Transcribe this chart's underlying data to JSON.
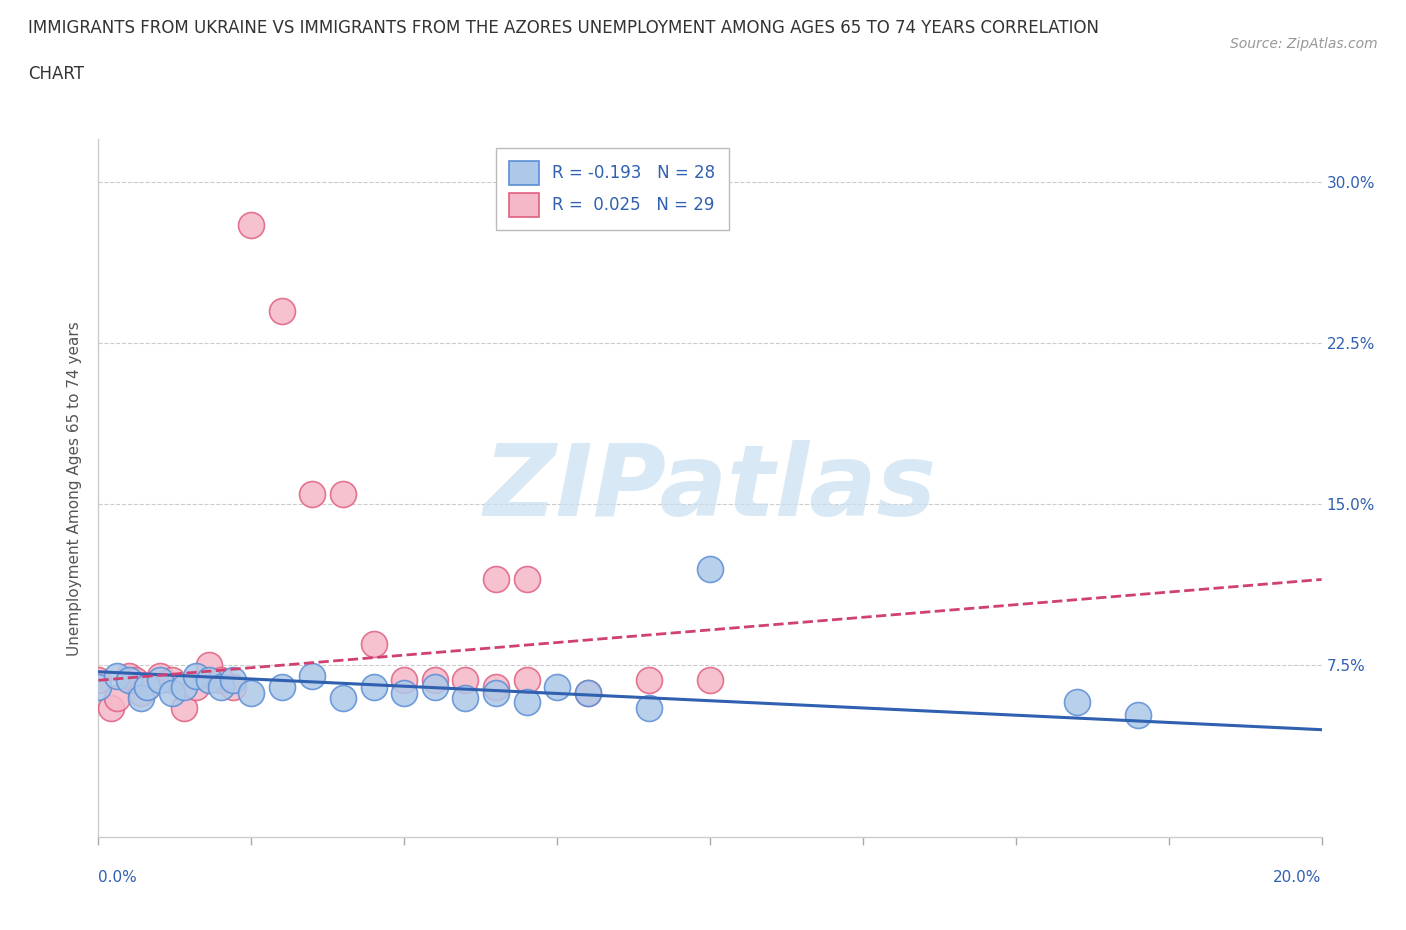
{
  "title_line1": "IMMIGRANTS FROM UKRAINE VS IMMIGRANTS FROM THE AZORES UNEMPLOYMENT AMONG AGES 65 TO 74 YEARS CORRELATION",
  "title_line2": "CHART",
  "source": "Source: ZipAtlas.com",
  "ylabel": "Unemployment Among Ages 65 to 74 years",
  "xlim": [
    0.0,
    0.2
  ],
  "ylim": [
    -0.005,
    0.32
  ],
  "ukraine_R": -0.193,
  "ukraine_N": 28,
  "azores_R": 0.025,
  "azores_N": 29,
  "ukraine_color": "#adc8e8",
  "azores_color": "#f5b8c8",
  "ukraine_edge_color": "#5b8ed6",
  "azores_edge_color": "#e06080",
  "ukraine_line_color": "#3060b0",
  "azores_line_color": "#d04070",
  "watermark_color": "#c8dff0",
  "grid_color": "#cccccc",
  "background_color": "#ffffff",
  "title_fontsize": 12,
  "axis_label_fontsize": 11,
  "tick_fontsize": 11,
  "legend_fontsize": 12,
  "source_fontsize": 10,
  "ukraine_points_x": [
    0.0,
    0.003,
    0.005,
    0.007,
    0.008,
    0.01,
    0.012,
    0.014,
    0.016,
    0.018,
    0.02,
    0.022,
    0.025,
    0.03,
    0.035,
    0.04,
    0.045,
    0.05,
    0.055,
    0.06,
    0.065,
    0.07,
    0.075,
    0.08,
    0.09,
    0.1,
    0.16,
    0.17
  ],
  "ukraine_points_y": [
    0.065,
    0.07,
    0.068,
    0.06,
    0.065,
    0.068,
    0.062,
    0.065,
    0.07,
    0.068,
    0.065,
    0.068,
    0.062,
    0.065,
    0.07,
    0.06,
    0.065,
    0.062,
    0.065,
    0.06,
    0.062,
    0.058,
    0.065,
    0.062,
    0.055,
    0.12,
    0.058,
    0.052
  ],
  "azores_points_x": [
    0.0,
    0.002,
    0.003,
    0.005,
    0.006,
    0.007,
    0.008,
    0.01,
    0.012,
    0.014,
    0.016,
    0.018,
    0.02,
    0.022,
    0.025,
    0.03,
    0.035,
    0.04,
    0.045,
    0.05,
    0.055,
    0.06,
    0.065,
    0.07,
    0.08,
    0.09,
    0.1,
    0.065,
    0.07
  ],
  "azores_points_y": [
    0.068,
    0.055,
    0.06,
    0.07,
    0.068,
    0.062,
    0.065,
    0.07,
    0.068,
    0.055,
    0.065,
    0.075,
    0.068,
    0.065,
    0.28,
    0.24,
    0.155,
    0.155,
    0.085,
    0.068,
    0.068,
    0.068,
    0.065,
    0.068,
    0.062,
    0.068,
    0.068,
    0.115,
    0.115
  ],
  "ukraine_trend_x": [
    0.0,
    0.2
  ],
  "ukraine_trend_y": [
    0.072,
    0.045
  ],
  "azores_trend_x": [
    0.0,
    0.2
  ],
  "azores_trend_y": [
    0.068,
    0.115
  ],
  "ytick_vals": [
    0.075,
    0.15,
    0.225,
    0.3
  ],
  "ytick_labels": [
    "7.5%",
    "15.0%",
    "22.5%",
    "30.0%"
  ]
}
